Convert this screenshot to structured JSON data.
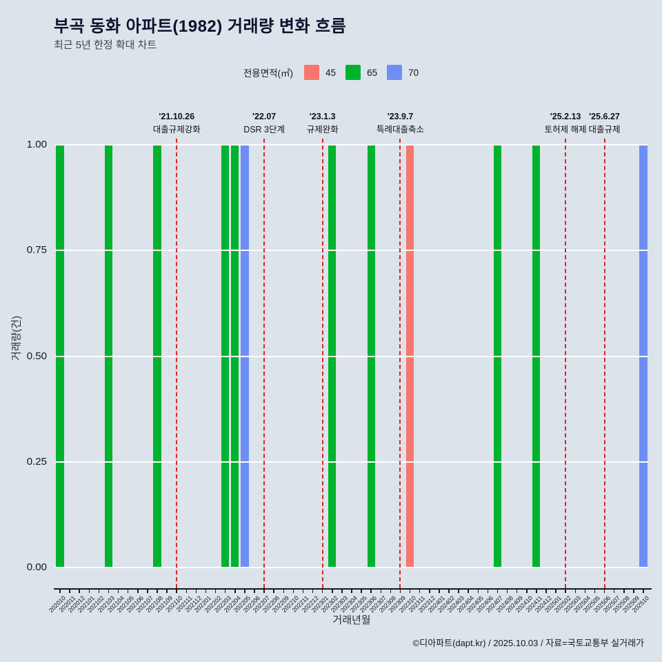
{
  "page": {
    "title": "부곡 동화 아파트(1982) 거래량 변화 흐름",
    "subtitle": "최근 5년 한정 확대 차트",
    "footer": "©디아파트(dapt.kr) / 2025.10.03 / 자료=국토교통부 실거래가"
  },
  "legend": {
    "label": "전용면적(㎡)",
    "items": [
      {
        "name": "45",
        "color": "#f8766d"
      },
      {
        "name": "65",
        "color": "#00b22d"
      },
      {
        "name": "70",
        "color": "#6e8ef5"
      }
    ]
  },
  "colors": {
    "background": "#dce3ea",
    "gridline": "#ffffff",
    "event_line": "#e02421",
    "axis": "#16181c"
  },
  "chart_data": {
    "type": "bar",
    "title": "부곡 동화 아파트(1982) 거래량 변화 흐름",
    "subtitle": "최근 5년 한정 확대 차트",
    "xlabel": "거래년월",
    "ylabel": "거래량(건)",
    "ylim": [
      0,
      1.0
    ],
    "ytick_labels": [
      "0.00",
      "0.25",
      "0.50",
      "0.75",
      "1.00"
    ],
    "grid": "horizontal-white",
    "legend_position": "top",
    "categories": [
      "202010",
      "202011",
      "202012",
      "202101",
      "202102",
      "202103",
      "202104",
      "202105",
      "202106",
      "202107",
      "202108",
      "202109",
      "202110",
      "202111",
      "202112",
      "202201",
      "202202",
      "202203",
      "202204",
      "202205",
      "202206",
      "202207",
      "202208",
      "202209",
      "202210",
      "202211",
      "202212",
      "202301",
      "202302",
      "202303",
      "202304",
      "202305",
      "202306",
      "202307",
      "202308",
      "202309",
      "202310",
      "202311",
      "202312",
      "202401",
      "202402",
      "202403",
      "202404",
      "202405",
      "202406",
      "202407",
      "202408",
      "202409",
      "202410",
      "202411",
      "202412",
      "202501",
      "202502",
      "202503",
      "202504",
      "202505",
      "202506",
      "202507",
      "202508",
      "202509",
      "202510"
    ],
    "series": [
      {
        "name": "45",
        "color": "#f8766d",
        "points": {
          "202310": 1
        }
      },
      {
        "name": "65",
        "color": "#00b22d",
        "points": {
          "202010": 1,
          "202103": 1,
          "202108": 1,
          "202203": 1,
          "202204": 1,
          "202302": 1,
          "202306": 1,
          "202407": 1,
          "202411": 1
        }
      },
      {
        "name": "70",
        "color": "#6e8ef5",
        "points": {
          "202205": 1,
          "202510": 1
        }
      }
    ],
    "events": [
      {
        "month": "202110",
        "date": "'21.10.26",
        "label": "대출규제강화"
      },
      {
        "month": "202207",
        "date": "'22.07",
        "label": "DSR 3단계"
      },
      {
        "month": "202301",
        "date": "'23.1.3",
        "label": "규제완화"
      },
      {
        "month": "202309",
        "date": "'23.9.7",
        "label": "특례대출축소"
      },
      {
        "month": "202502",
        "date": "'25.2.13",
        "label": "토허제 해제"
      },
      {
        "month": "202506",
        "date": "'25.6.27",
        "label": "대출규제"
      }
    ]
  }
}
